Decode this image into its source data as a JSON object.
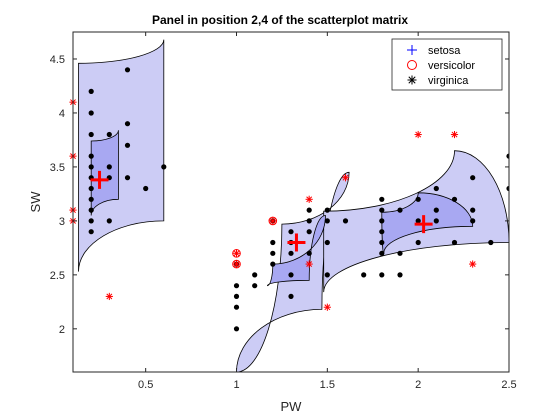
{
  "chart_data": {
    "type": "scatter",
    "title": "Panel in position 2,4 of the scatterplot matrix",
    "xlabel": "PW",
    "ylabel": "SW",
    "xlim": [
      0.1,
      2.5
    ],
    "ylim": [
      1.6,
      4.75
    ],
    "xticks": [
      0.5,
      1,
      1.5,
      2,
      2.5
    ],
    "xtick_labels": [
      "0.5",
      "1",
      "1.5",
      "2",
      "2.5"
    ],
    "yticks": [
      2,
      2.5,
      3,
      3.5,
      4,
      4.5
    ],
    "ytick_labels": [
      "2",
      "2.5",
      "3",
      "3.5",
      "4",
      "4.5"
    ],
    "grid": false,
    "legend_position": "top-right",
    "legend": [
      {
        "label": "setosa",
        "marker": "plus",
        "color": "#0000ff"
      },
      {
        "label": "versicolor",
        "marker": "circle",
        "color": "#ff0000"
      },
      {
        "label": "virginica",
        "marker": "asterisk",
        "color": "#000000"
      }
    ],
    "colors": {
      "region_outer": "#ccccf5",
      "region_inner": "#a8a8f2",
      "points": "#000000",
      "misclassified": "#ff0000",
      "centroid": "#ff0000"
    },
    "points": [
      [
        0.2,
        4.2
      ],
      [
        0.2,
        4.0
      ],
      [
        0.2,
        3.8
      ],
      [
        0.2,
        3.6
      ],
      [
        0.2,
        3.5
      ],
      [
        0.2,
        3.4
      ],
      [
        0.2,
        3.3
      ],
      [
        0.2,
        3.2
      ],
      [
        0.2,
        3.1
      ],
      [
        0.2,
        3.0
      ],
      [
        0.2,
        2.9
      ],
      [
        0.3,
        3.8
      ],
      [
        0.3,
        3.5
      ],
      [
        0.3,
        3.4
      ],
      [
        0.3,
        3.0
      ],
      [
        0.4,
        4.4
      ],
      [
        0.4,
        3.9
      ],
      [
        0.4,
        3.7
      ],
      [
        0.4,
        3.4
      ],
      [
        0.5,
        3.3
      ],
      [
        0.6,
        3.5
      ],
      [
        1.0,
        2.6
      ],
      [
        1.0,
        2.4
      ],
      [
        1.0,
        2.3
      ],
      [
        1.0,
        2.2
      ],
      [
        1.0,
        2.0
      ],
      [
        1.1,
        2.5
      ],
      [
        1.1,
        2.4
      ],
      [
        1.2,
        3.0
      ],
      [
        1.2,
        2.8
      ],
      [
        1.2,
        2.7
      ],
      [
        1.2,
        2.6
      ],
      [
        1.3,
        2.9
      ],
      [
        1.3,
        2.8
      ],
      [
        1.3,
        2.7
      ],
      [
        1.3,
        2.5
      ],
      [
        1.3,
        2.3
      ],
      [
        1.4,
        3.1
      ],
      [
        1.4,
        3.0
      ],
      [
        1.4,
        2.9
      ],
      [
        1.4,
        2.7
      ],
      [
        1.5,
        3.1
      ],
      [
        1.5,
        3.0
      ],
      [
        1.5,
        2.8
      ],
      [
        1.5,
        2.5
      ],
      [
        1.6,
        3.0
      ],
      [
        1.7,
        2.5
      ],
      [
        1.8,
        3.2
      ],
      [
        1.8,
        3.1
      ],
      [
        1.8,
        3.0
      ],
      [
        1.8,
        2.9
      ],
      [
        1.8,
        2.8
      ],
      [
        1.8,
        2.7
      ],
      [
        1.8,
        2.5
      ],
      [
        1.9,
        3.1
      ],
      [
        1.9,
        2.7
      ],
      [
        1.9,
        2.5
      ],
      [
        2.0,
        3.2
      ],
      [
        2.0,
        3.0
      ],
      [
        2.0,
        2.8
      ],
      [
        2.1,
        3.3
      ],
      [
        2.1,
        3.1
      ],
      [
        2.1,
        3.0
      ],
      [
        2.2,
        3.2
      ],
      [
        2.2,
        2.8
      ],
      [
        2.3,
        3.4
      ],
      [
        2.3,
        3.1
      ],
      [
        2.3,
        3.0
      ],
      [
        2.4,
        2.8
      ],
      [
        2.5,
        3.6
      ],
      [
        2.5,
        3.3
      ]
    ],
    "misclassified": [
      {
        "marker": "asterisk",
        "x": 0.1,
        "y": 4.1
      },
      {
        "marker": "asterisk",
        "x": 0.1,
        "y": 3.6
      },
      {
        "marker": "asterisk",
        "x": 0.1,
        "y": 3.1
      },
      {
        "marker": "asterisk",
        "x": 0.1,
        "y": 3.0
      },
      {
        "marker": "asterisk",
        "x": 0.3,
        "y": 2.3
      },
      {
        "marker": "asterisk",
        "x": 1.0,
        "y": 2.7
      },
      {
        "marker": "asterisk",
        "x": 1.0,
        "y": 2.6
      },
      {
        "marker": "asterisk",
        "x": 1.2,
        "y": 3.0
      },
      {
        "marker": "asterisk",
        "x": 1.4,
        "y": 3.2
      },
      {
        "marker": "asterisk",
        "x": 1.4,
        "y": 2.6
      },
      {
        "marker": "asterisk",
        "x": 1.5,
        "y": 2.2
      },
      {
        "marker": "asterisk",
        "x": 1.6,
        "y": 3.4
      },
      {
        "marker": "asterisk",
        "x": 2.0,
        "y": 3.8
      },
      {
        "marker": "asterisk",
        "x": 2.2,
        "y": 3.8
      },
      {
        "marker": "asterisk",
        "x": 2.3,
        "y": 2.6
      },
      {
        "marker": "circle",
        "x": 1.0,
        "y": 2.7
      },
      {
        "marker": "circle",
        "x": 1.0,
        "y": 2.6
      },
      {
        "marker": "circle",
        "x": 1.2,
        "y": 3.0
      }
    ],
    "centroids": [
      {
        "x": 0.246,
        "y": 3.38
      },
      {
        "x": 1.33,
        "y": 2.8
      },
      {
        "x": 2.03,
        "y": 2.97
      }
    ],
    "regions": [
      {
        "name": "setosa",
        "outer": [
          [
            0.13,
            4.46
          ],
          [
            0.6,
            4.68
          ],
          [
            0.6,
            3.0
          ],
          [
            0.13,
            2.53
          ]
        ],
        "inner": [
          [
            0.2,
            3.74
          ],
          [
            0.35,
            3.84
          ],
          [
            0.35,
            3.2
          ],
          [
            0.2,
            3.05
          ]
        ]
      },
      {
        "name": "versicolor",
        "outer": [
          [
            1.25,
            2.97
          ],
          [
            1.62,
            3.45
          ],
          [
            1.47,
            2.18
          ],
          [
            1.0,
            1.6
          ]
        ],
        "inner": [
          [
            1.2,
            2.6
          ],
          [
            1.49,
            3.05
          ],
          [
            1.4,
            2.45
          ],
          [
            1.17,
            2.4
          ]
        ]
      },
      {
        "name": "virginica",
        "outer": [
          [
            1.48,
            3.09
          ],
          [
            2.2,
            3.65
          ],
          [
            2.5,
            2.8
          ],
          [
            1.48,
            2.34
          ]
        ],
        "inner": [
          [
            1.8,
            3.08
          ],
          [
            2.0,
            3.26
          ],
          [
            2.3,
            2.95
          ],
          [
            1.81,
            2.7
          ]
        ]
      }
    ]
  }
}
